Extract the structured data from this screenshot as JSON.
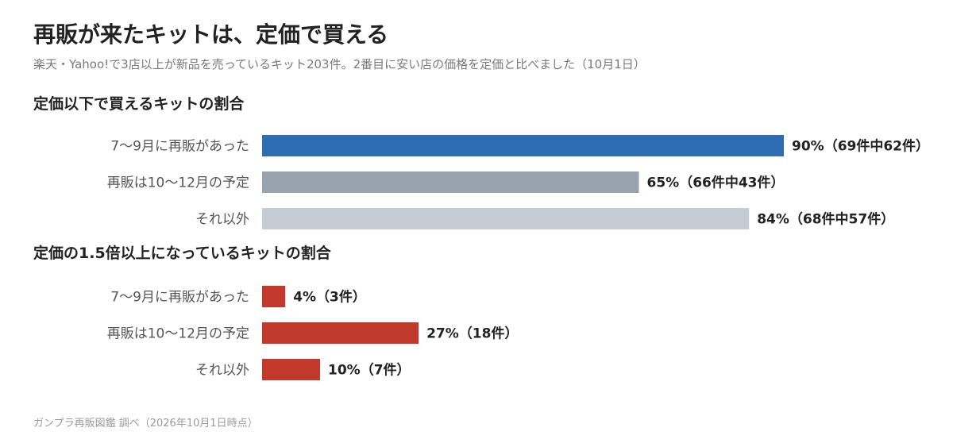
{
  "title": "再販が来たキットは、定価で買える",
  "subtitle": "楽天・Yahoo!で3店以上が新品を売っているキット203件。2番目に安い店の価格を定価と比べました（10月1日）",
  "source": "ガンプラ再販図鑑 調べ（2026年10月1日時点）",
  "chart_data": [
    {
      "type": "bar",
      "orientation": "horizontal",
      "title": "定価以下で買えるキットの割合",
      "categories": [
        "7〜9月に再販があった",
        "再販は10〜12月の予定",
        "それ以外"
      ],
      "values": [
        90,
        65,
        84
      ],
      "value_labels": [
        "90%（69件中62件）",
        "65%（66件中43件）",
        "84%（68件中57件）"
      ],
      "colors": [
        "#2f6db3",
        "#97a4b0",
        "#c6ccd3"
      ],
      "xlim": [
        0,
        100
      ],
      "grid": false
    },
    {
      "type": "bar",
      "orientation": "horizontal",
      "title": "定価の1.5倍以上になっているキットの割合",
      "categories": [
        "7〜9月に再販があった",
        "再販は10〜12月の予定",
        "それ以外"
      ],
      "values": [
        4,
        27,
        10
      ],
      "value_labels": [
        "4%（3件）",
        "27%（18件）",
        "10%（7件）"
      ],
      "colors": [
        "#c0392b",
        "#c0392b",
        "#c0392b"
      ],
      "xlim": [
        0,
        100
      ],
      "grid": false
    }
  ]
}
